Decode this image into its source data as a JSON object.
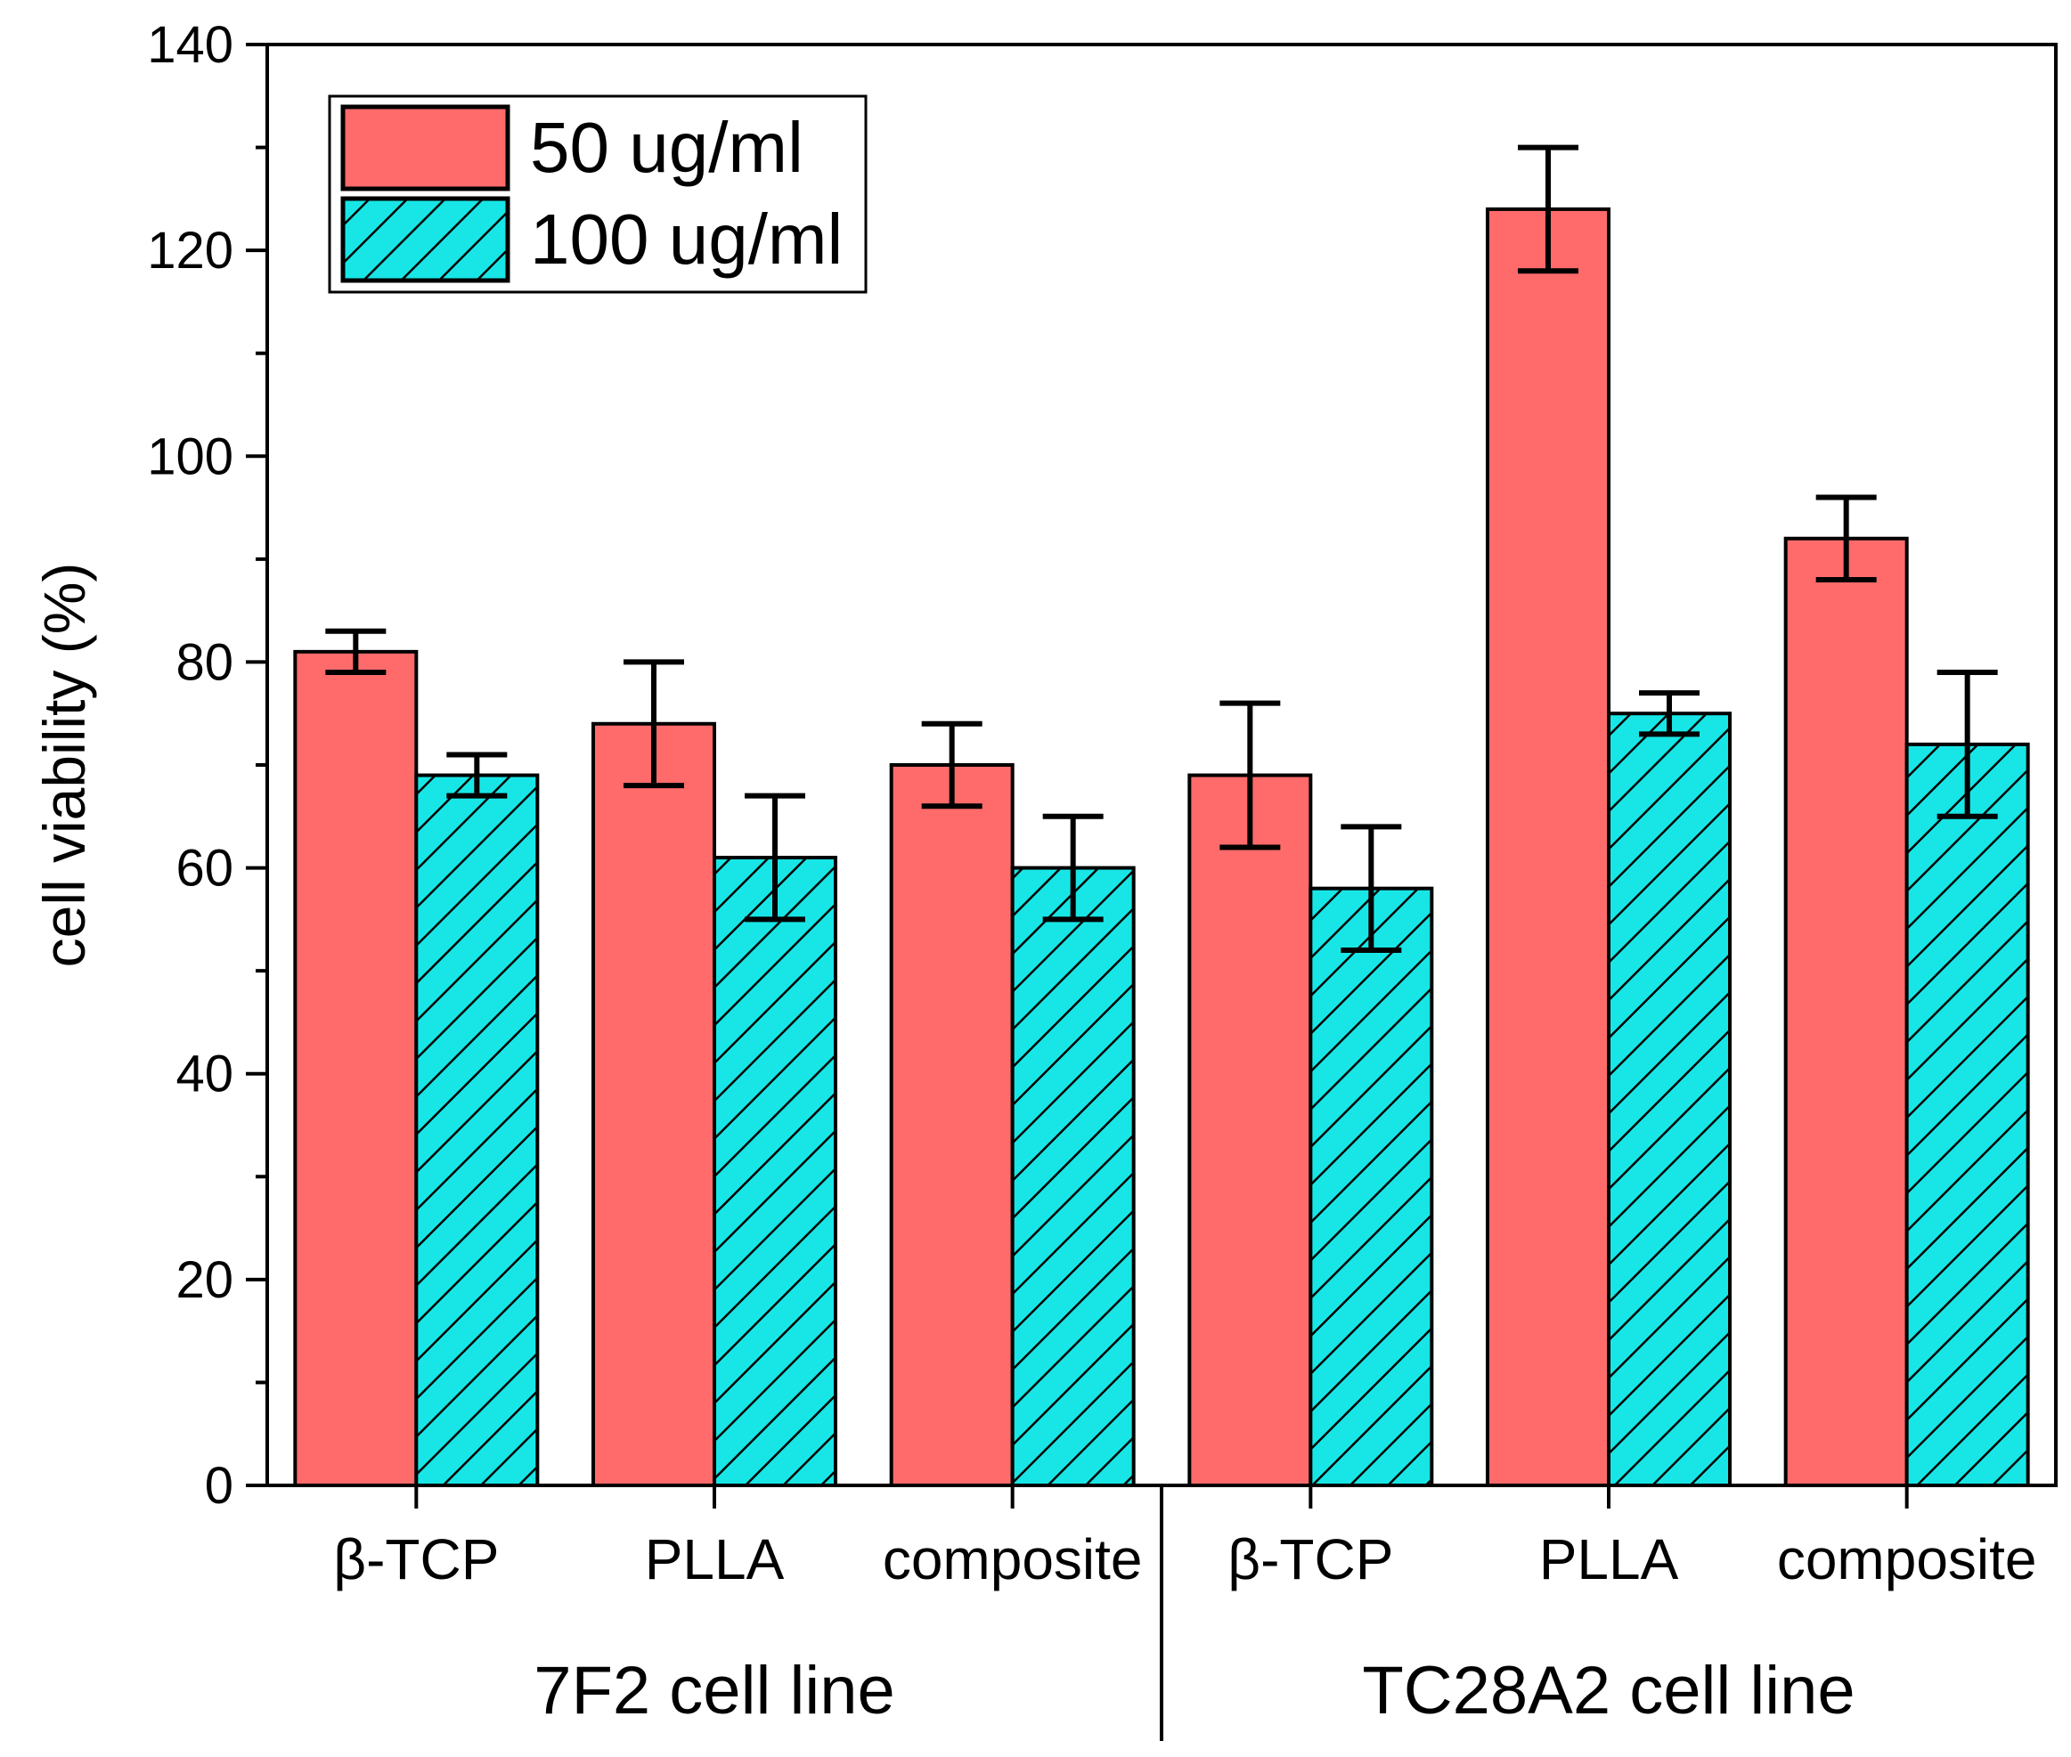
{
  "chart_data": {
    "type": "bar",
    "title": "",
    "xlabel": "",
    "ylabel": "cell viability (%)",
    "ylim": [
      0,
      140
    ],
    "yticks": [
      0,
      20,
      40,
      60,
      80,
      100,
      120,
      140
    ],
    "grid": false,
    "legend_position": "top-left",
    "colors": {
      "series_0": "#ff6b6b",
      "series_1": "#18e6e6",
      "stroke": "#000000"
    },
    "categories": [
      "β-TCP",
      "PLLA",
      "composite",
      "β-TCP",
      "PLLA",
      "composite"
    ],
    "groups": [
      {
        "label": "7F2 cell line",
        "categories": [
          0,
          1,
          2
        ]
      },
      {
        "label": "TC28A2 cell line",
        "categories": [
          3,
          4,
          5
        ]
      }
    ],
    "series": [
      {
        "name": "50 ug/ml",
        "pattern": "solid",
        "values": [
          81,
          74,
          70,
          69,
          124,
          92
        ],
        "errors": [
          2,
          6,
          4,
          7,
          6,
          4
        ]
      },
      {
        "name": "100 ug/ml",
        "pattern": "hatched",
        "values": [
          69,
          61,
          60,
          58,
          75,
          72
        ],
        "errors": [
          2,
          6,
          5,
          6,
          2,
          7
        ]
      }
    ]
  }
}
